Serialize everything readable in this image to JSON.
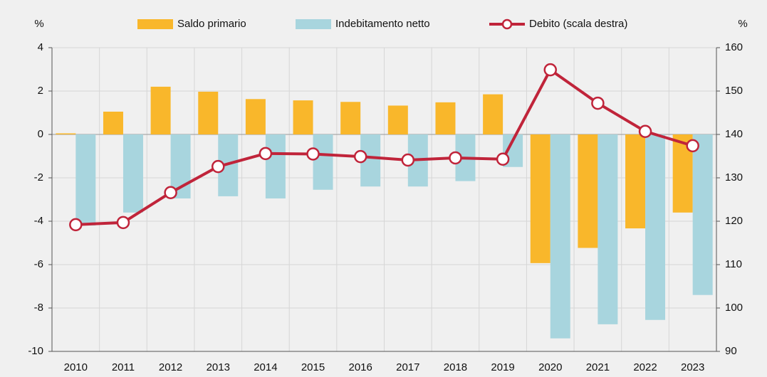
{
  "chart_data": {
    "type": "bar-line",
    "y_label": "%",
    "y2_label": "%",
    "categories": [
      "2010",
      "2011",
      "2012",
      "2013",
      "2014",
      "2015",
      "2016",
      "2017",
      "2018",
      "2019",
      "2020",
      "2021",
      "2022",
      "2023"
    ],
    "series": [
      {
        "name": "Saldo primario",
        "type": "bar",
        "color": "#f9b72b",
        "values": [
          0.05,
          1.05,
          2.2,
          1.97,
          1.63,
          1.57,
          1.5,
          1.33,
          1.48,
          1.85,
          -5.93,
          -5.23,
          -4.33,
          -3.6
        ]
      },
      {
        "name": "Indebitamento netto",
        "type": "bar",
        "color": "#a8d5de",
        "values": [
          -4.2,
          -3.6,
          -2.95,
          -2.85,
          -2.95,
          -2.55,
          -2.4,
          -2.4,
          -2.15,
          -1.5,
          -9.4,
          -8.75,
          -8.55,
          -7.4
        ]
      },
      {
        "name": "Debito (scala destra)",
        "type": "line",
        "axis": "y2",
        "color": "#c0243a",
        "values": [
          119.2,
          119.7,
          126.6,
          132.6,
          135.6,
          135.5,
          134.9,
          134.1,
          134.6,
          134.3,
          154.9,
          147.2,
          140.7,
          137.4
        ]
      }
    ],
    "ylim": [
      -10,
      4
    ],
    "yticks": [
      -10,
      -8,
      -6,
      -4,
      -2,
      0,
      2,
      4
    ],
    "y2lim": [
      90,
      160
    ],
    "y2ticks": [
      90,
      100,
      110,
      120,
      130,
      140,
      150,
      160
    ],
    "grid": true,
    "legend": "top"
  }
}
